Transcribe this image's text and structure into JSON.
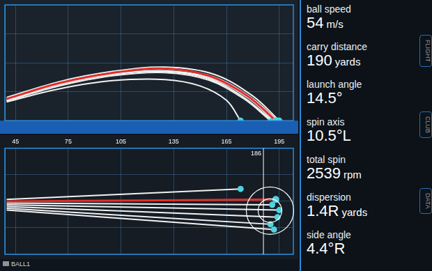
{
  "chart_data": [
    {
      "type": "line",
      "xlim": [
        39,
        203
      ],
      "xticks": [
        45,
        75,
        105,
        135,
        165,
        195
      ],
      "ylim": [
        0,
        40
      ],
      "yticks": [
        0,
        10,
        20,
        30,
        40
      ],
      "grid": true,
      "tick_labels": "x",
      "marker": "circle",
      "series": [
        {
          "color": "#f2f2f2",
          "x": [
            40,
            70,
            100,
            130,
            150,
            165,
            173
          ],
          "values": [
            6.5,
            11,
            13.8,
            14.2,
            12,
            7,
            0
          ]
        },
        {
          "color": "#f2f2f2",
          "x": [
            40,
            70,
            100,
            130,
            155,
            175,
            191
          ],
          "values": [
            7,
            12.5,
            16,
            17,
            14.5,
            8,
            0
          ]
        },
        {
          "color": "#f2f2f2",
          "x": [
            40,
            70,
            100,
            130,
            158,
            180,
            195
          ],
          "values": [
            8,
            13.5,
            17,
            18.5,
            16,
            8.5,
            0
          ]
        },
        {
          "color": "#f2f2f2",
          "x": [
            40,
            70,
            100,
            130,
            157,
            179,
            194
          ],
          "values": [
            7.5,
            13,
            16.5,
            17.8,
            15.3,
            8,
            0
          ]
        },
        {
          "color": "#f2f2f2",
          "x": [
            40,
            70,
            100,
            130,
            155,
            175,
            190
          ],
          "values": [
            6.8,
            12,
            15.5,
            16.6,
            14,
            7.5,
            0
          ]
        },
        {
          "color": "#f2f2f2",
          "x": [
            40,
            70,
            100,
            130,
            156,
            177,
            192
          ],
          "values": [
            7.2,
            12.6,
            16,
            17.2,
            14.8,
            8,
            0
          ]
        },
        {
          "color": "#e0302a",
          "x": [
            40,
            70,
            100,
            130,
            155,
            177,
            193
          ],
          "values": [
            7.5,
            13,
            16.5,
            18,
            15.5,
            8.5,
            0
          ]
        }
      ]
    },
    {
      "type": "line",
      "xlim": [
        39,
        203
      ],
      "xticks": [
        45,
        75,
        105,
        135,
        165,
        195
      ],
      "ylim": [
        -30,
        30
      ],
      "yticks": [
        -30,
        -15,
        0,
        15,
        30
      ],
      "grid": true,
      "tick_labels": "x",
      "marker": "circle",
      "annotations": [
        {
          "x": 186,
          "text": "186"
        }
      ],
      "series": [
        {
          "color": "#f2f2f2",
          "x": [
            40,
            173
          ],
          "values": [
            1,
            7
          ]
        },
        {
          "color": "#f2f2f2",
          "x": [
            40,
            191
          ],
          "values": [
            -1,
            -2
          ]
        },
        {
          "color": "#f2f2f2",
          "x": [
            40,
            195
          ],
          "values": [
            -2,
            -5
          ]
        },
        {
          "color": "#f2f2f2",
          "x": [
            40,
            194
          ],
          "values": [
            -3,
            -9
          ]
        },
        {
          "color": "#f2f2f2",
          "x": [
            40,
            190
          ],
          "values": [
            -4,
            -13
          ]
        },
        {
          "color": "#f2f2f2",
          "x": [
            40,
            192
          ],
          "values": [
            -5,
            -16
          ]
        },
        {
          "color": "#e0302a",
          "x": [
            40,
            193
          ],
          "values": [
            0,
            1
          ]
        }
      ]
    }
  ],
  "panel": [
    {
      "label": "ball speed",
      "value": "54",
      "unit": "m/s"
    },
    {
      "label": "carry distance",
      "value": "190",
      "unit": "yards"
    },
    {
      "label": "launch angle",
      "value": "14.5°"
    },
    {
      "label": "spin axis",
      "value": "10.5°L"
    },
    {
      "label": "total spin",
      "value": "2539",
      "unit": "rpm"
    },
    {
      "label": "dispersion",
      "value": "1.4R",
      "unit": "yards"
    },
    {
      "label": "side angle",
      "value": "4.4°R"
    }
  ],
  "tabs": [
    "FLIGHT",
    "CLUB",
    "DATA"
  ],
  "footer": "BALL1"
}
